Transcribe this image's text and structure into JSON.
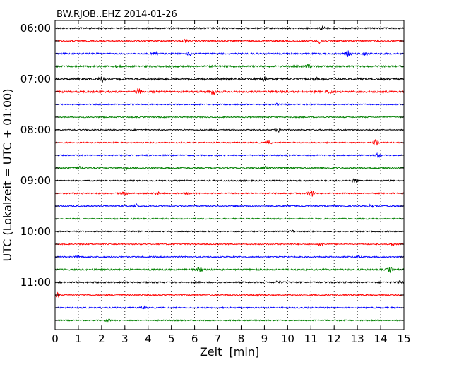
{
  "chart_data": {
    "type": "line",
    "title": "BW.RJOB..EHZ 2014-01-26",
    "xlabel": "Zeit  [min]",
    "ylabel": "UTC (Lokalzeit = UTC + 01:00)",
    "xlim": [
      0,
      15
    ],
    "x_ticks": [
      "0",
      "1",
      "2",
      "3",
      "4",
      "5",
      "6",
      "7",
      "8",
      "9",
      "10",
      "11",
      "12",
      "13",
      "14",
      "15"
    ],
    "y_tick_labels": [
      "06:00",
      "07:00",
      "08:00",
      "09:00",
      "10:00",
      "11:00"
    ],
    "grid": "vertical dotted",
    "colors": [
      "#000000",
      "#ff0000",
      "#0000ff",
      "#008000"
    ],
    "traces": [
      {
        "start": "06:00",
        "color": "#000000",
        "amp": 1.0,
        "events": [
          [
            11.5,
            2.0
          ]
        ]
      },
      {
        "start": "06:15",
        "color": "#ff0000",
        "amp": 1.0,
        "events": [
          [
            5.6,
            2.0
          ],
          [
            11.4,
            3.0
          ]
        ]
      },
      {
        "start": "06:30",
        "color": "#0000ff",
        "amp": 1.0,
        "events": [
          [
            4.3,
            4.5
          ],
          [
            5.8,
            2.5
          ],
          [
            12.6,
            3.5
          ],
          [
            13.3,
            2.0
          ]
        ]
      },
      {
        "start": "06:45",
        "color": "#008000",
        "amp": 1.2,
        "events": [
          [
            2.7,
            1.5
          ],
          [
            10.9,
            2.0
          ]
        ]
      },
      {
        "start": "07:00",
        "color": "#000000",
        "amp": 1.4,
        "events": [
          [
            2.0,
            4.0
          ],
          [
            9.0,
            3.5
          ],
          [
            11.2,
            2.0
          ]
        ]
      },
      {
        "start": "07:15",
        "color": "#ff0000",
        "amp": 1.3,
        "events": [
          [
            3.6,
            4.0
          ],
          [
            6.8,
            5.0
          ],
          [
            11.8,
            1.5
          ]
        ]
      },
      {
        "start": "07:30",
        "color": "#0000ff",
        "amp": 0.8,
        "events": [
          [
            9.5,
            1.5
          ]
        ]
      },
      {
        "start": "07:45",
        "color": "#008000",
        "amp": 0.8,
        "events": []
      },
      {
        "start": "08:00",
        "color": "#000000",
        "amp": 0.8,
        "events": [
          [
            9.6,
            3.0
          ]
        ]
      },
      {
        "start": "08:15",
        "color": "#ff0000",
        "amp": 0.8,
        "events": [
          [
            9.2,
            2.5
          ],
          [
            13.8,
            4.0
          ]
        ]
      },
      {
        "start": "08:30",
        "color": "#0000ff",
        "amp": 0.8,
        "events": [
          [
            13.9,
            3.0
          ]
        ]
      },
      {
        "start": "08:45",
        "color": "#008000",
        "amp": 1.0,
        "events": [
          [
            1.0,
            2.0
          ],
          [
            3.0,
            1.5
          ],
          [
            9.0,
            2.0
          ]
        ]
      },
      {
        "start": "09:00",
        "color": "#000000",
        "amp": 0.9,
        "events": [
          [
            12.9,
            3.5
          ]
        ]
      },
      {
        "start": "09:15",
        "color": "#ff0000",
        "amp": 0.9,
        "events": [
          [
            3.0,
            2.0
          ],
          [
            4.4,
            2.0
          ],
          [
            5.7,
            1.5
          ],
          [
            11.0,
            5.0
          ]
        ]
      },
      {
        "start": "09:30",
        "color": "#0000ff",
        "amp": 0.9,
        "events": [
          [
            3.5,
            2.5
          ],
          [
            13.6,
            2.0
          ]
        ]
      },
      {
        "start": "09:45",
        "color": "#008000",
        "amp": 0.8,
        "events": []
      },
      {
        "start": "10:00",
        "color": "#000000",
        "amp": 0.8,
        "events": [
          [
            10.2,
            1.5
          ]
        ]
      },
      {
        "start": "10:15",
        "color": "#ff0000",
        "amp": 0.8,
        "events": [
          [
            11.4,
            2.0
          ],
          [
            14.5,
            1.5
          ]
        ]
      },
      {
        "start": "10:30",
        "color": "#0000ff",
        "amp": 0.9,
        "events": [
          [
            1.0,
            1.5
          ],
          [
            13.0,
            2.0
          ]
        ]
      },
      {
        "start": "10:45",
        "color": "#008000",
        "amp": 1.1,
        "events": [
          [
            6.2,
            3.5
          ],
          [
            14.4,
            3.5
          ]
        ]
      },
      {
        "start": "11:00",
        "color": "#000000",
        "amp": 1.0,
        "events": [
          [
            9.6,
            1.5
          ],
          [
            14.8,
            2.0
          ]
        ]
      },
      {
        "start": "11:15",
        "color": "#ff0000",
        "amp": 0.9,
        "events": [
          [
            0.1,
            3.0
          ],
          [
            8.7,
            1.5
          ]
        ]
      },
      {
        "start": "11:30",
        "color": "#0000ff",
        "amp": 0.9,
        "events": [
          [
            3.8,
            1.5
          ]
        ]
      },
      {
        "start": "11:45",
        "color": "#008000",
        "amp": 0.8,
        "events": [
          [
            2.3,
            2.0
          ]
        ]
      }
    ]
  }
}
